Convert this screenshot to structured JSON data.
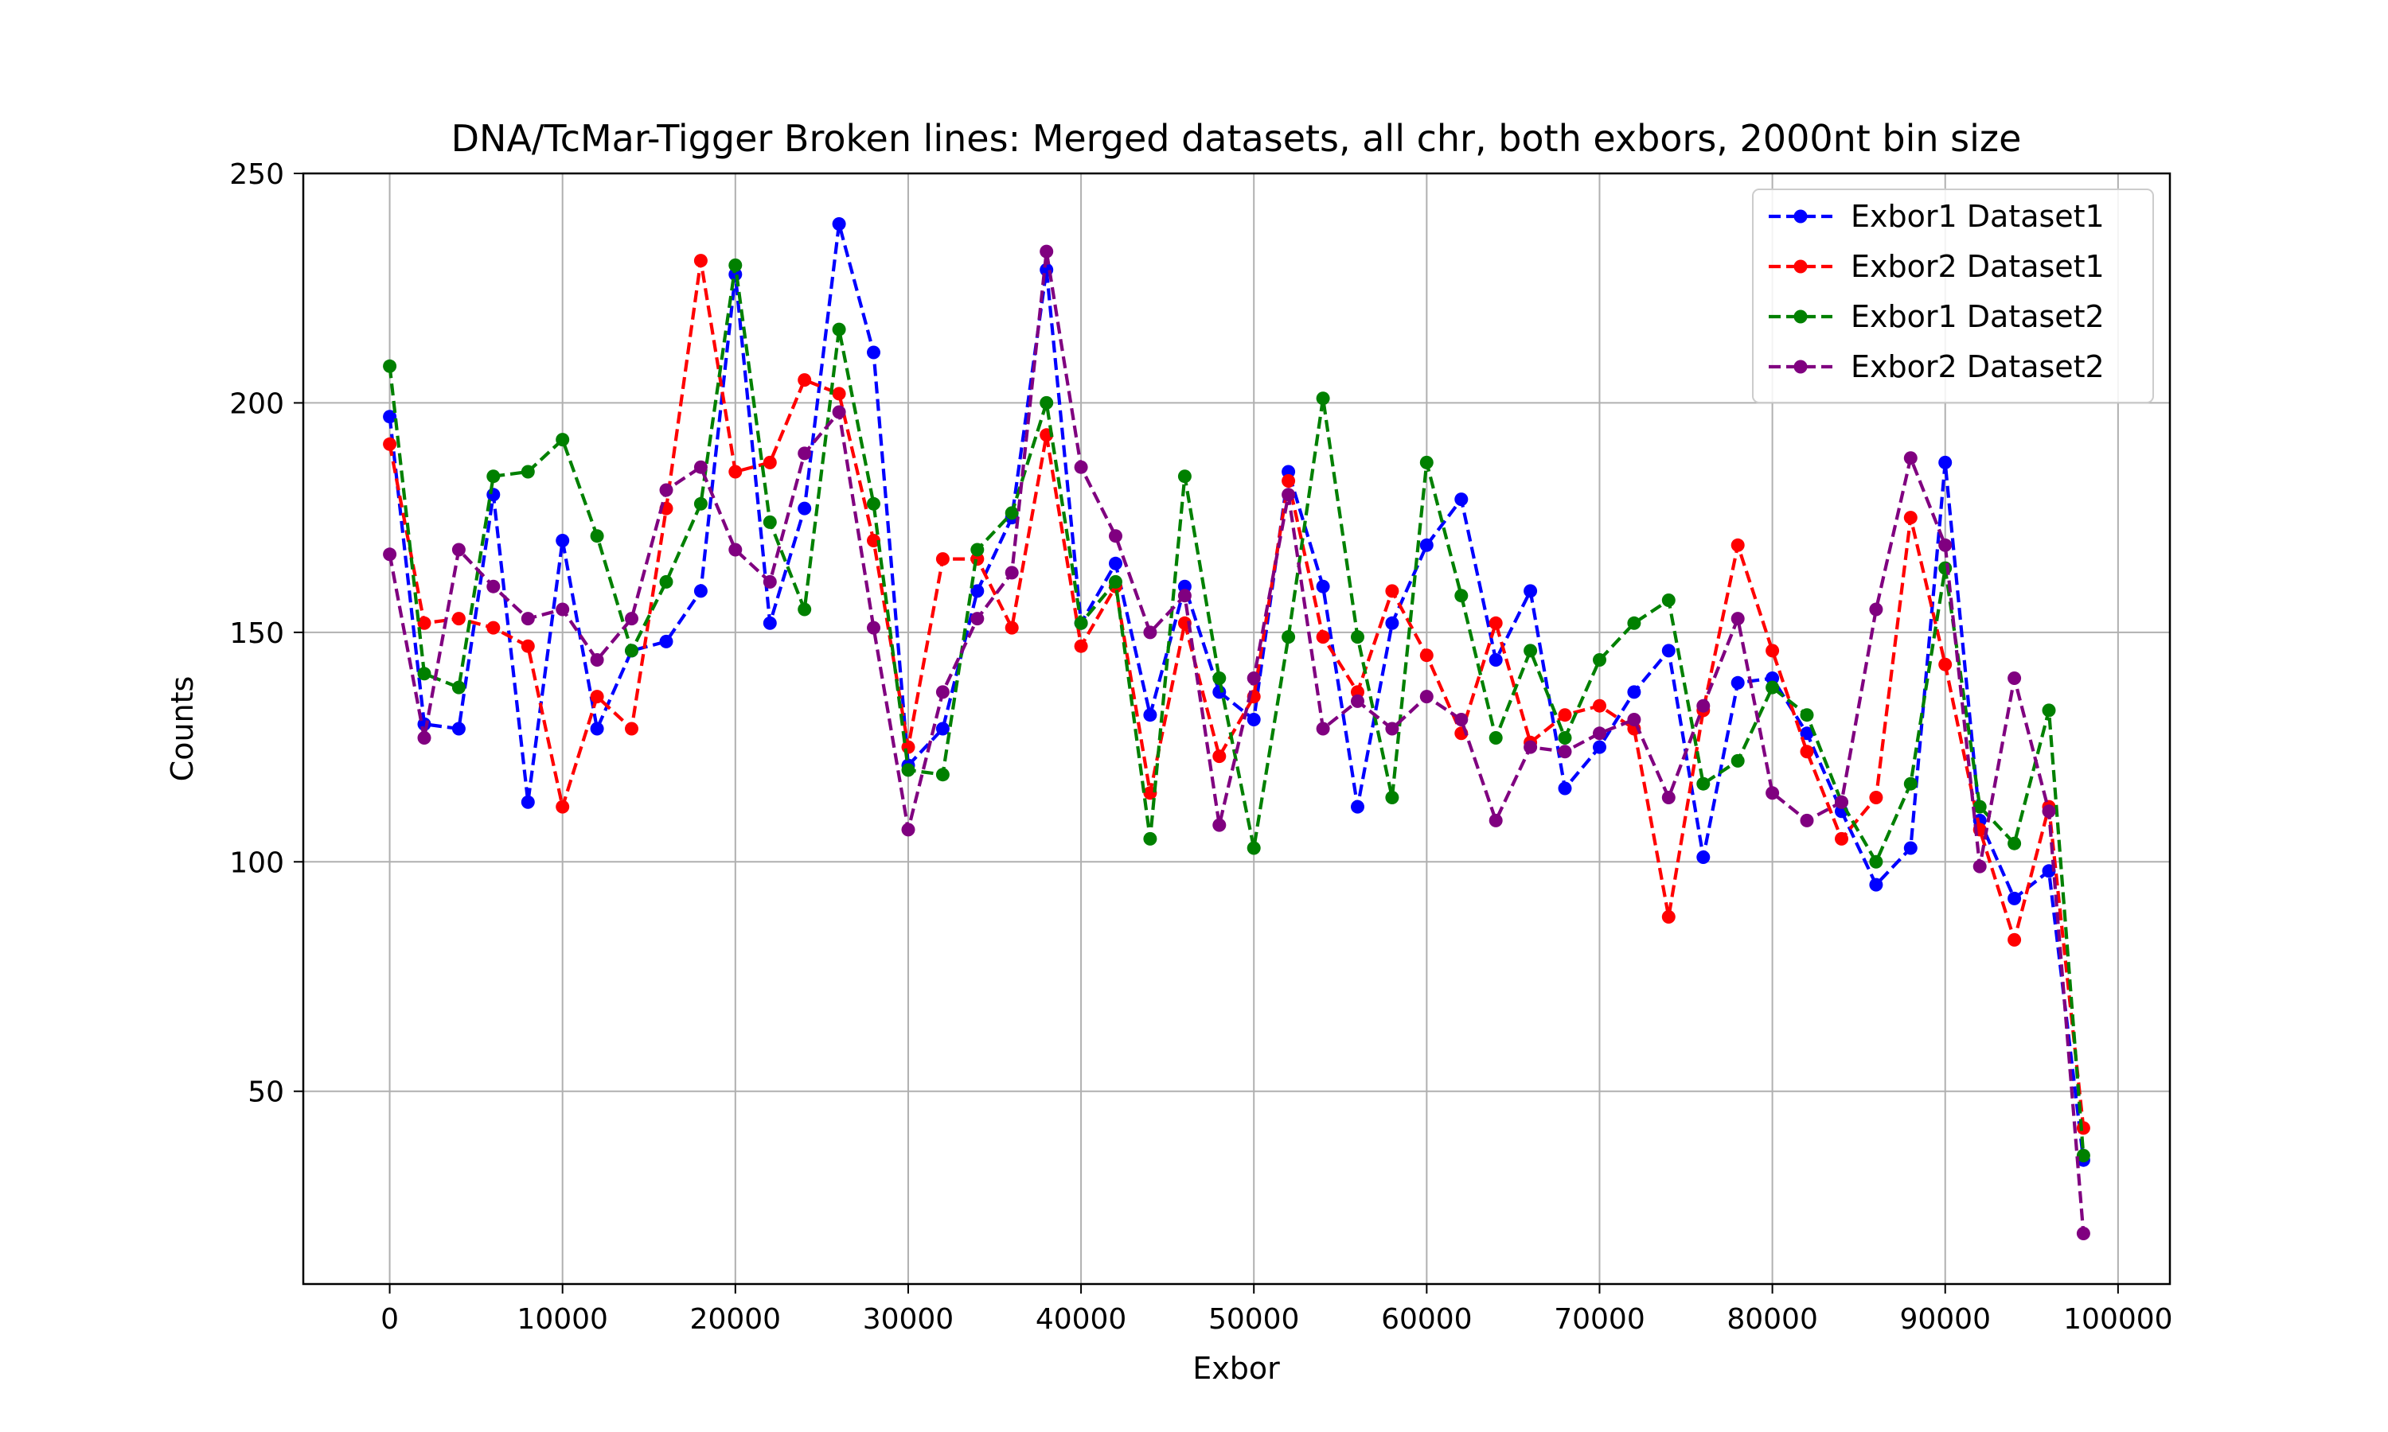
{
  "chart_data": {
    "type": "line",
    "title": "DNA/TcMar-Tigger Broken lines: Merged datasets, all chr, both exbors, 2000nt bin size",
    "xlabel": "Exbor",
    "ylabel": "Counts",
    "xlim": [
      -5000,
      103000
    ],
    "ylim": [
      8,
      250
    ],
    "xticks": [
      0,
      10000,
      20000,
      30000,
      40000,
      50000,
      60000,
      70000,
      80000,
      90000,
      100000
    ],
    "yticks": [
      50,
      100,
      150,
      200,
      250
    ],
    "grid": true,
    "legend_position": "top-right",
    "x": [
      0,
      2000,
      4000,
      6000,
      8000,
      10000,
      12000,
      14000,
      16000,
      18000,
      20000,
      22000,
      24000,
      26000,
      28000,
      30000,
      32000,
      34000,
      36000,
      38000,
      40000,
      42000,
      44000,
      46000,
      48000,
      50000,
      52000,
      54000,
      56000,
      58000,
      60000,
      62000,
      64000,
      66000,
      68000,
      70000,
      72000,
      74000,
      76000,
      78000,
      80000,
      82000,
      84000,
      86000,
      88000,
      90000,
      92000,
      94000,
      96000,
      98000
    ],
    "series": [
      {
        "name": "Exbor1 Dataset1",
        "color": "#0000ff",
        "values": [
          197,
          130,
          129,
          180,
          113,
          170,
          129,
          146,
          148,
          159,
          228,
          152,
          177,
          239,
          211,
          121,
          129,
          159,
          175,
          229,
          152,
          165,
          132,
          160,
          137,
          131,
          185,
          160,
          112,
          152,
          169,
          179,
          144,
          159,
          116,
          125,
          137,
          146,
          101,
          139,
          140,
          128,
          111,
          95,
          103,
          187,
          109,
          92,
          98,
          35
        ]
      },
      {
        "name": "Exbor2 Dataset1",
        "color": "#ff0000",
        "values": [
          191,
          152,
          153,
          151,
          147,
          112,
          136,
          129,
          177,
          231,
          185,
          187,
          205,
          202,
          170,
          125,
          166,
          166,
          151,
          193,
          147,
          160,
          115,
          152,
          123,
          136,
          183,
          149,
          137,
          159,
          145,
          128,
          152,
          126,
          132,
          134,
          129,
          88,
          133,
          169,
          146,
          124,
          105,
          114,
          175,
          143,
          107,
          83,
          112,
          42
        ]
      },
      {
        "name": "Exbor1 Dataset2",
        "color": "#008000",
        "values": [
          208,
          141,
          138,
          184,
          185,
          192,
          171,
          146,
          161,
          178,
          230,
          174,
          155,
          216,
          178,
          120,
          119,
          168,
          176,
          200,
          152,
          161,
          105,
          184,
          140,
          103,
          149,
          201,
          149,
          114,
          187,
          158,
          127,
          146,
          127,
          144,
          152,
          157,
          117,
          122,
          138,
          132,
          113,
          100,
          117,
          164,
          112,
          104,
          133,
          36
        ]
      },
      {
        "name": "Exbor2 Dataset2",
        "color": "#800080",
        "values": [
          167,
          127,
          168,
          160,
          153,
          155,
          144,
          153,
          181,
          186,
          168,
          161,
          189,
          198,
          151,
          107,
          137,
          153,
          163,
          233,
          186,
          171,
          150,
          158,
          108,
          140,
          180,
          129,
          135,
          129,
          136,
          131,
          109,
          125,
          124,
          128,
          131,
          114,
          134,
          153,
          115,
          109,
          113,
          155,
          188,
          169,
          99,
          140,
          111,
          19
        ]
      }
    ]
  }
}
